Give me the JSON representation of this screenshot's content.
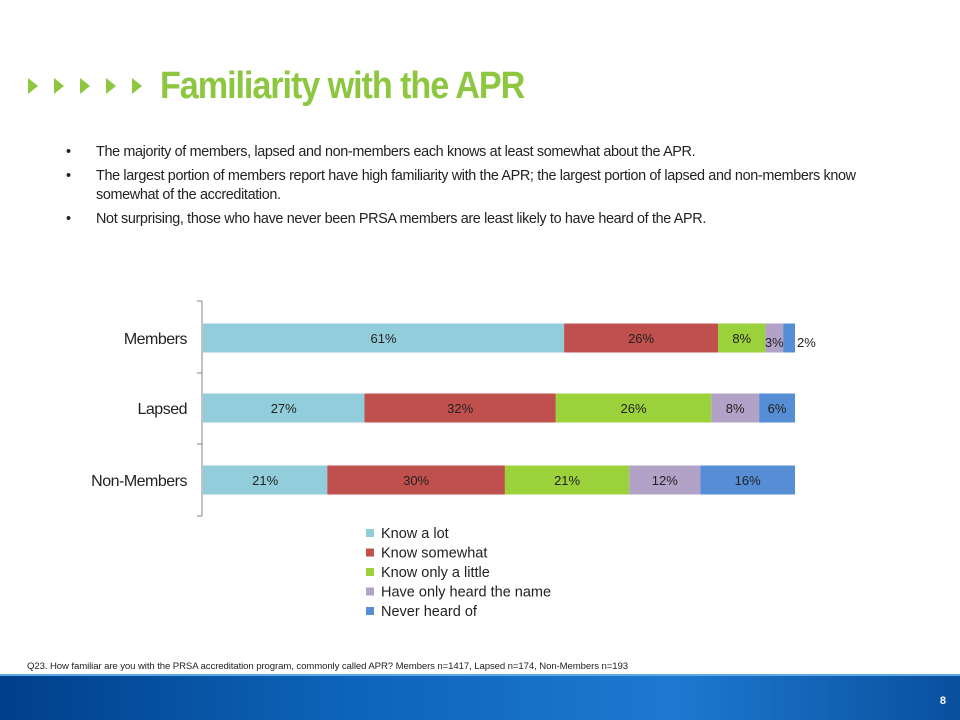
{
  "slide": {
    "title": "Familiarity with the APR",
    "bullets": [
      "The majority of members, lapsed and non-members each knows at least somewhat about the APR.",
      "The largest portion of members report have high familiarity with the APR; the largest portion of lapsed and non-members know somewhat of the accreditation.",
      "Not surprising, those who have never been PRSA members are least likely to have heard of the APR."
    ],
    "footnote": "Q23.  How familiar are you with the PRSA accreditation program, commonly called APR? Members n=1417, Lapsed n=174, Non-Members n=193",
    "page_number": "8"
  },
  "colors": {
    "title": "#8dc63f",
    "footer": "#0d63b8"
  },
  "chart_data": {
    "type": "bar",
    "orientation": "horizontal",
    "stacked": true,
    "categories": [
      "Members",
      "Lapsed",
      "Non-Members"
    ],
    "series": [
      {
        "name": "Know a lot",
        "color": "#92cddc",
        "values": [
          61,
          27,
          21
        ],
        "labels": [
          "61%",
          "27%",
          "21%"
        ]
      },
      {
        "name": "Know somewhat",
        "color": "#c0504d",
        "values": [
          26,
          32,
          30
        ],
        "labels": [
          "26%",
          "32%",
          "30%"
        ]
      },
      {
        "name": "Know only a little",
        "color": "#9bd13b",
        "values": [
          8,
          26,
          21
        ],
        "labels": [
          "8%",
          "26%",
          "21%"
        ]
      },
      {
        "name": "Have only heard the name",
        "color": "#b3a2c7",
        "values": [
          3,
          8,
          12
        ],
        "labels": [
          "3%",
          "8%",
          "12%"
        ]
      },
      {
        "name": "Never heard of",
        "color": "#558ed5",
        "values": [
          2,
          6,
          16
        ],
        "labels": [
          "2%",
          "6%",
          "16%"
        ]
      }
    ],
    "xlim": [
      0,
      100
    ],
    "legend_position": "bottom",
    "grid": false
  }
}
